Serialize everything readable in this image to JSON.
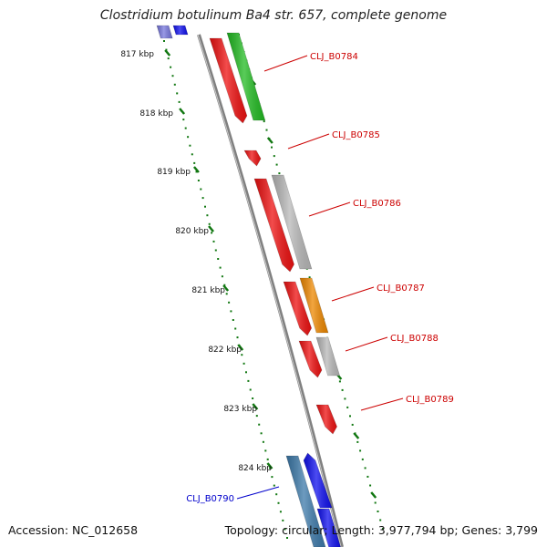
{
  "header": {
    "title": "Clostridium botulinum Ba4 str. 657, complete genome"
  },
  "footer": {
    "accession": "Accession: NC_012658",
    "summary": "Topology: circular; Length: 3,977,794 bp; Genes: 3,799"
  },
  "scale": {
    "ticks": [
      "817 kbp",
      "818 kbp",
      "819 kbp",
      "820 kbp",
      "821 kbp",
      "822 kbp",
      "823 kbp",
      "824 kbp"
    ]
  },
  "gene_labels": [
    {
      "text": "CLJ_B0784",
      "color": "#cc0000"
    },
    {
      "text": "CLJ_B0785",
      "color": "#cc0000"
    },
    {
      "text": "CLJ_B0786",
      "color": "#cc0000"
    },
    {
      "text": "CLJ_B0787",
      "color": "#cc0000"
    },
    {
      "text": "CLJ_B0788",
      "color": "#cc0000"
    },
    {
      "text": "CLJ_B0789",
      "color": "#cc0000"
    },
    {
      "text": "CLJ_B0790",
      "color": "#0000cc"
    }
  ],
  "colors": {
    "red": "#ee1111",
    "green": "#22bb22",
    "gray": "#b8b8b8",
    "orange": "#ee8800",
    "blue": "#1111ee",
    "steel": "#3d7aaa",
    "purple": "#7777dd",
    "backbone": "#808080",
    "dots": "#117711"
  }
}
